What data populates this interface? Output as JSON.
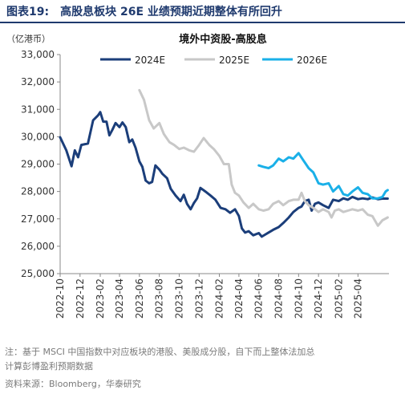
{
  "figure": {
    "label": "图表19:",
    "title": "高股息板块 26E 业绩预期近期整体有所回升",
    "note": "注：基于 MSCI 中国指数中对应板块的港股、美股成分股，自下而上整体法加总\n计算彭博盈利预期数据",
    "source": "资料来源：Bloomberg，华泰研究"
  },
  "chart_data": {
    "type": "line",
    "title": "境外中资股-高股息",
    "unit_label": "（亿港币）",
    "ylim": [
      25000,
      33000
    ],
    "y_ticks": [
      "25,000",
      "26,000",
      "27,000",
      "28,000",
      "29,000",
      "30,000",
      "31,000",
      "32,000",
      "33,000"
    ],
    "x_range": [
      "2022-10-01",
      "2025-07-05"
    ],
    "x_ticks": [
      "2022-10",
      "2022-12",
      "2023-02",
      "2023-04",
      "2023-06",
      "2023-08",
      "2023-10",
      "2023-12",
      "2024-02",
      "2024-04",
      "2024-06",
      "2024-08",
      "2024-10",
      "2024-12",
      "2025-02",
      "2025-04"
    ],
    "legend_position": "top",
    "grid": false,
    "series": [
      {
        "name": "2024E",
        "color": "#1b3e7a",
        "points": [
          [
            "2022-10-01",
            29980
          ],
          [
            "2022-10-20",
            29500
          ],
          [
            "2022-11-05",
            28920
          ],
          [
            "2022-11-15",
            29500
          ],
          [
            "2022-11-25",
            29250
          ],
          [
            "2022-12-05",
            29700
          ],
          [
            "2022-12-25",
            29750
          ],
          [
            "2023-01-10",
            30600
          ],
          [
            "2023-01-25",
            30780
          ],
          [
            "2023-02-01",
            30900
          ],
          [
            "2023-02-10",
            30550
          ],
          [
            "2023-02-20",
            30550
          ],
          [
            "2023-03-01",
            30050
          ],
          [
            "2023-03-10",
            30250
          ],
          [
            "2023-03-20",
            30500
          ],
          [
            "2023-04-01",
            30350
          ],
          [
            "2023-04-10",
            30520
          ],
          [
            "2023-04-20",
            30350
          ],
          [
            "2023-05-01",
            29800
          ],
          [
            "2023-05-10",
            29900
          ],
          [
            "2023-05-20",
            29600
          ],
          [
            "2023-06-01",
            29100
          ],
          [
            "2023-06-10",
            28900
          ],
          [
            "2023-06-20",
            28400
          ],
          [
            "2023-07-01",
            28300
          ],
          [
            "2023-07-10",
            28350
          ],
          [
            "2023-07-20",
            28950
          ],
          [
            "2023-08-01",
            28800
          ],
          [
            "2023-08-10",
            28650
          ],
          [
            "2023-08-25",
            28480
          ],
          [
            "2023-09-05",
            28100
          ],
          [
            "2023-09-20",
            27850
          ],
          [
            "2023-10-05",
            27650
          ],
          [
            "2023-10-15",
            27880
          ],
          [
            "2023-10-25",
            27550
          ],
          [
            "2023-11-05",
            27350
          ],
          [
            "2023-11-15",
            27580
          ],
          [
            "2023-11-25",
            27750
          ],
          [
            "2023-12-05",
            28130
          ],
          [
            "2023-12-20",
            28000
          ],
          [
            "2024-01-05",
            27850
          ],
          [
            "2024-01-20",
            27700
          ],
          [
            "2024-02-05",
            27400
          ],
          [
            "2024-02-20",
            27350
          ],
          [
            "2024-03-05",
            27220
          ],
          [
            "2024-03-20",
            27350
          ],
          [
            "2024-04-01",
            27100
          ],
          [
            "2024-04-10",
            26650
          ],
          [
            "2024-04-20",
            26500
          ],
          [
            "2024-05-01",
            26550
          ],
          [
            "2024-05-15",
            26400
          ],
          [
            "2024-06-01",
            26480
          ],
          [
            "2024-06-10",
            26350
          ],
          [
            "2024-06-20",
            26420
          ],
          [
            "2024-07-01",
            26500
          ],
          [
            "2024-07-15",
            26600
          ],
          [
            "2024-08-01",
            26700
          ],
          [
            "2024-08-15",
            26850
          ],
          [
            "2024-09-01",
            27050
          ],
          [
            "2024-09-15",
            27250
          ],
          [
            "2024-10-01",
            27400
          ],
          [
            "2024-10-10",
            27450
          ],
          [
            "2024-10-20",
            27650
          ],
          [
            "2024-11-01",
            27700
          ],
          [
            "2024-11-10",
            27300
          ],
          [
            "2024-11-20",
            27550
          ],
          [
            "2024-12-01",
            27600
          ],
          [
            "2024-12-15",
            27500
          ],
          [
            "2025-01-01",
            27400
          ],
          [
            "2025-01-15",
            27700
          ],
          [
            "2025-02-01",
            27650
          ],
          [
            "2025-02-15",
            27750
          ],
          [
            "2025-03-01",
            27700
          ],
          [
            "2025-03-15",
            27800
          ],
          [
            "2025-04-01",
            27720
          ],
          [
            "2025-04-15",
            27750
          ],
          [
            "2025-05-01",
            27720
          ],
          [
            "2025-05-15",
            27780
          ],
          [
            "2025-06-01",
            27720
          ],
          [
            "2025-06-15",
            27740
          ],
          [
            "2025-07-01",
            27740
          ]
        ]
      },
      {
        "name": "2025E",
        "color": "#c8c8c8",
        "points": [
          [
            "2023-06-01",
            31700
          ],
          [
            "2023-06-15",
            31350
          ],
          [
            "2023-07-01",
            30600
          ],
          [
            "2023-07-15",
            30300
          ],
          [
            "2023-08-01",
            30500
          ],
          [
            "2023-08-15",
            30100
          ],
          [
            "2023-09-01",
            29800
          ],
          [
            "2023-09-15",
            29700
          ],
          [
            "2023-10-01",
            29550
          ],
          [
            "2023-10-15",
            29600
          ],
          [
            "2023-11-01",
            29500
          ],
          [
            "2023-11-15",
            29450
          ],
          [
            "2023-12-01",
            29700
          ],
          [
            "2023-12-15",
            29950
          ],
          [
            "2024-01-01",
            29700
          ],
          [
            "2024-01-15",
            29550
          ],
          [
            "2024-02-01",
            29300
          ],
          [
            "2024-02-15",
            29000
          ],
          [
            "2024-03-01",
            29000
          ],
          [
            "2024-03-10",
            28250
          ],
          [
            "2024-03-20",
            27950
          ],
          [
            "2024-04-01",
            27850
          ],
          [
            "2024-04-15",
            27600
          ],
          [
            "2024-05-01",
            27400
          ],
          [
            "2024-05-15",
            27550
          ],
          [
            "2024-06-01",
            27350
          ],
          [
            "2024-06-15",
            27300
          ],
          [
            "2024-07-01",
            27350
          ],
          [
            "2024-07-15",
            27550
          ],
          [
            "2024-08-01",
            27650
          ],
          [
            "2024-08-15",
            27500
          ],
          [
            "2024-09-01",
            27650
          ],
          [
            "2024-09-15",
            27700
          ],
          [
            "2024-10-01",
            27700
          ],
          [
            "2024-10-10",
            27950
          ],
          [
            "2024-10-20",
            27650
          ],
          [
            "2024-11-01",
            27500
          ],
          [
            "2024-11-15",
            27400
          ],
          [
            "2024-12-01",
            27250
          ],
          [
            "2024-12-15",
            27350
          ],
          [
            "2025-01-01",
            27250
          ],
          [
            "2025-01-10",
            27050
          ],
          [
            "2025-01-20",
            27300
          ],
          [
            "2025-02-01",
            27350
          ],
          [
            "2025-02-15",
            27250
          ],
          [
            "2025-03-01",
            27300
          ],
          [
            "2025-03-15",
            27350
          ],
          [
            "2025-04-01",
            27300
          ],
          [
            "2025-04-15",
            27350
          ],
          [
            "2025-05-01",
            27150
          ],
          [
            "2025-05-15",
            27100
          ],
          [
            "2025-06-01",
            26750
          ],
          [
            "2025-06-15",
            26950
          ],
          [
            "2025-07-01",
            27050
          ]
        ]
      },
      {
        "name": "2026E",
        "color": "#1ab0e8",
        "points": [
          [
            "2024-06-01",
            28950
          ],
          [
            "2024-06-15",
            28900
          ],
          [
            "2024-07-01",
            28850
          ],
          [
            "2024-07-15",
            28950
          ],
          [
            "2024-08-01",
            29200
          ],
          [
            "2024-08-15",
            29100
          ],
          [
            "2024-09-01",
            29250
          ],
          [
            "2024-09-15",
            29200
          ],
          [
            "2024-10-01",
            29400
          ],
          [
            "2024-10-15",
            29150
          ],
          [
            "2024-11-01",
            28850
          ],
          [
            "2024-11-15",
            28700
          ],
          [
            "2024-12-01",
            28300
          ],
          [
            "2024-12-15",
            28250
          ],
          [
            "2025-01-01",
            28300
          ],
          [
            "2025-01-15",
            28000
          ],
          [
            "2025-02-01",
            28200
          ],
          [
            "2025-02-15",
            27900
          ],
          [
            "2025-03-01",
            27850
          ],
          [
            "2025-03-15",
            28000
          ],
          [
            "2025-04-01",
            28150
          ],
          [
            "2025-04-15",
            27950
          ],
          [
            "2025-05-01",
            27900
          ],
          [
            "2025-05-15",
            27750
          ],
          [
            "2025-06-01",
            27750
          ],
          [
            "2025-06-15",
            27800
          ],
          [
            "2025-06-25",
            28000
          ],
          [
            "2025-07-01",
            28050
          ]
        ]
      }
    ]
  }
}
